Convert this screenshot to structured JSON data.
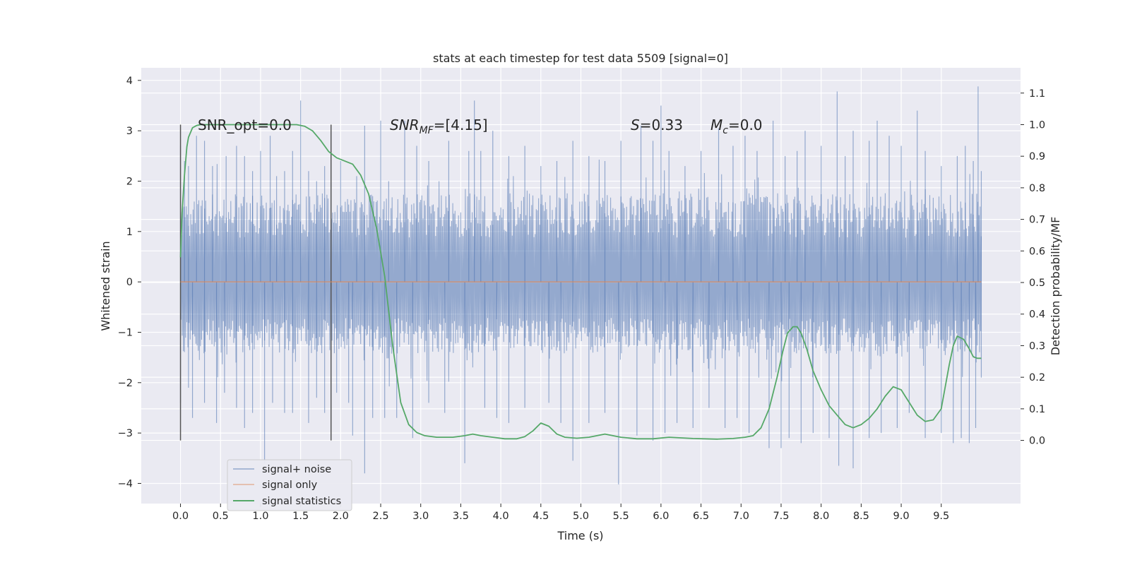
{
  "chart_data": {
    "type": "line",
    "title": "stats at each timestep for test data 5509 [signal=0]",
    "xlabel": "Time (s)",
    "ylabel": "Whitened strain",
    "y2label": "Detection probability/MF",
    "xlim": [
      -0.49,
      10.49
    ],
    "ylim": [
      -4.4,
      4.25
    ],
    "y2lim": [
      -0.2,
      1.18
    ],
    "x_ticks": [
      "0.0",
      "0.5",
      "1.0",
      "1.5",
      "2.0",
      "2.5",
      "3.0",
      "3.5",
      "4.0",
      "4.5",
      "5.0",
      "5.5",
      "6.0",
      "6.5",
      "7.0",
      "7.5",
      "8.0",
      "8.5",
      "9.0",
      "9.5"
    ],
    "y_ticks": [
      "4",
      "3",
      "2",
      "1",
      "0",
      "−1",
      "−2",
      "−3",
      "−4"
    ],
    "y2_ticks": [
      "1.1",
      "1.0",
      "0.9",
      "0.8",
      "0.7",
      "0.6",
      "0.5",
      "0.4",
      "0.3",
      "0.2",
      "0.1",
      "0.0"
    ],
    "grid": true,
    "annotations": {
      "snr_opt": "SNR_opt=0.0",
      "snr_mf_base": "SNR",
      "snr_mf_sub": "MF",
      "snr_mf_value": "=[4.15]",
      "s_sym": "S",
      "s_value": "=0.33",
      "mc_sym": "M",
      "mc_sub": "c",
      "mc_value": "=0.0"
    },
    "vertical_lines": [
      0.0,
      1.88
    ],
    "noise_envelope": {
      "x_start": 0.0,
      "x_end": 10.0,
      "typical_upper": 1.6,
      "typical_lower": -1.3,
      "max_peak": 3.88,
      "min_trough": -4.02
    },
    "series": [
      {
        "name": "signal+ noise",
        "color": "#4c72b0",
        "peaks": [
          {
            "x": 0.0,
            "y": 2.7
          },
          {
            "x": 0.05,
            "y": 2.4
          },
          {
            "x": 0.1,
            "y": 2.3
          },
          {
            "x": 0.2,
            "y": 2.9
          },
          {
            "x": 0.3,
            "y": 2.8
          },
          {
            "x": 0.4,
            "y": 2.3
          },
          {
            "x": 0.57,
            "y": 2.5
          },
          {
            "x": 0.7,
            "y": 2.7
          },
          {
            "x": 0.8,
            "y": 2.5
          },
          {
            "x": 0.9,
            "y": 2.2
          },
          {
            "x": 1.0,
            "y": 2.6
          },
          {
            "x": 1.12,
            "y": 2.9
          },
          {
            "x": 1.2,
            "y": 2.1
          },
          {
            "x": 1.3,
            "y": 2.2
          },
          {
            "x": 1.4,
            "y": 2.6
          },
          {
            "x": 1.5,
            "y": 3.6
          },
          {
            "x": 1.6,
            "y": 2.2
          },
          {
            "x": 1.7,
            "y": 2.0
          },
          {
            "x": 1.8,
            "y": 2.3
          },
          {
            "x": 2.0,
            "y": 2.4
          },
          {
            "x": 2.2,
            "y": 2.1
          },
          {
            "x": 2.3,
            "y": 3.1
          },
          {
            "x": 2.5,
            "y": 3.2
          },
          {
            "x": 2.6,
            "y": 2.0
          },
          {
            "x": 2.8,
            "y": 3.2
          },
          {
            "x": 2.95,
            "y": 2.7
          },
          {
            "x": 3.1,
            "y": 2.4
          },
          {
            "x": 3.35,
            "y": 2.8
          },
          {
            "x": 3.6,
            "y": 2.6
          },
          {
            "x": 3.67,
            "y": 3.6
          },
          {
            "x": 3.75,
            "y": 2.6
          },
          {
            "x": 3.9,
            "y": 3.0
          },
          {
            "x": 4.1,
            "y": 2.5
          },
          {
            "x": 4.3,
            "y": 2.7
          },
          {
            "x": 4.5,
            "y": 2.3
          },
          {
            "x": 4.7,
            "y": 2.4
          },
          {
            "x": 4.9,
            "y": 2.8
          },
          {
            "x": 5.1,
            "y": 2.5
          },
          {
            "x": 5.3,
            "y": 2.4
          },
          {
            "x": 5.5,
            "y": 2.8
          },
          {
            "x": 5.75,
            "y": 3.1
          },
          {
            "x": 5.9,
            "y": 2.8
          },
          {
            "x": 6.0,
            "y": 3.5
          },
          {
            "x": 6.1,
            "y": 2.6
          },
          {
            "x": 6.3,
            "y": 2.3
          },
          {
            "x": 6.5,
            "y": 2.6
          },
          {
            "x": 6.72,
            "y": 3.05
          },
          {
            "x": 6.9,
            "y": 2.7
          },
          {
            "x": 7.05,
            "y": 2.9
          },
          {
            "x": 7.2,
            "y": 2.6
          },
          {
            "x": 7.4,
            "y": 3.2
          },
          {
            "x": 7.55,
            "y": 2.5
          },
          {
            "x": 7.7,
            "y": 2.6
          },
          {
            "x": 7.8,
            "y": 3.0
          },
          {
            "x": 8.0,
            "y": 2.7
          },
          {
            "x": 8.2,
            "y": 3.78
          },
          {
            "x": 8.3,
            "y": 2.5
          },
          {
            "x": 8.4,
            "y": 3.0
          },
          {
            "x": 8.6,
            "y": 2.8
          },
          {
            "x": 8.7,
            "y": 3.2
          },
          {
            "x": 8.85,
            "y": 2.9
          },
          {
            "x": 9.0,
            "y": 2.7
          },
          {
            "x": 9.2,
            "y": 3.4
          },
          {
            "x": 9.3,
            "y": 2.6
          },
          {
            "x": 9.5,
            "y": 2.3
          },
          {
            "x": 9.7,
            "y": 2.5
          },
          {
            "x": 9.8,
            "y": 2.7
          },
          {
            "x": 9.9,
            "y": 2.4
          },
          {
            "x": 9.96,
            "y": 3.88
          },
          {
            "x": 10.0,
            "y": 2.2
          }
        ],
        "troughs": [
          {
            "x": 0.0,
            "y": -2.4
          },
          {
            "x": 0.1,
            "y": -2.1
          },
          {
            "x": 0.15,
            "y": -2.7
          },
          {
            "x": 0.3,
            "y": -2.4
          },
          {
            "x": 0.45,
            "y": -2.8
          },
          {
            "x": 0.55,
            "y": -2.2
          },
          {
            "x": 0.7,
            "y": -2.5
          },
          {
            "x": 0.8,
            "y": -2.9
          },
          {
            "x": 0.9,
            "y": -2.6
          },
          {
            "x": 1.05,
            "y": -3.6
          },
          {
            "x": 1.15,
            "y": -2.4
          },
          {
            "x": 1.3,
            "y": -2.6
          },
          {
            "x": 1.4,
            "y": -2.6
          },
          {
            "x": 1.6,
            "y": -2.8
          },
          {
            "x": 1.7,
            "y": -2.3
          },
          {
            "x": 1.8,
            "y": -2.6
          },
          {
            "x": 1.95,
            "y": -2.2
          },
          {
            "x": 2.1,
            "y": -2.4
          },
          {
            "x": 2.15,
            "y": -3.05
          },
          {
            "x": 2.3,
            "y": -3.8
          },
          {
            "x": 2.4,
            "y": -2.7
          },
          {
            "x": 2.55,
            "y": -2.7
          },
          {
            "x": 2.7,
            "y": -2.7
          },
          {
            "x": 2.9,
            "y": -3.1
          },
          {
            "x": 3.1,
            "y": -2.4
          },
          {
            "x": 3.3,
            "y": -2.6
          },
          {
            "x": 3.55,
            "y": -3.6
          },
          {
            "x": 3.8,
            "y": -2.5
          },
          {
            "x": 3.95,
            "y": -2.7
          },
          {
            "x": 4.1,
            "y": -2.8
          },
          {
            "x": 4.3,
            "y": -2.5
          },
          {
            "x": 4.6,
            "y": -2.4
          },
          {
            "x": 4.75,
            "y": -2.8
          },
          {
            "x": 4.9,
            "y": -3.55
          },
          {
            "x": 5.1,
            "y": -2.8
          },
          {
            "x": 5.3,
            "y": -2.6
          },
          {
            "x": 5.47,
            "y": -4.02
          },
          {
            "x": 5.7,
            "y": -3.05
          },
          {
            "x": 5.9,
            "y": -3.15
          },
          {
            "x": 6.05,
            "y": -3.0
          },
          {
            "x": 6.2,
            "y": -2.8
          },
          {
            "x": 6.4,
            "y": -2.9
          },
          {
            "x": 6.6,
            "y": -2.5
          },
          {
            "x": 6.8,
            "y": -2.9
          },
          {
            "x": 6.95,
            "y": -2.7
          },
          {
            "x": 7.1,
            "y": -3.0
          },
          {
            "x": 7.35,
            "y": -3.3
          },
          {
            "x": 7.5,
            "y": -3.3
          },
          {
            "x": 7.6,
            "y": -3.1
          },
          {
            "x": 7.75,
            "y": -3.2
          },
          {
            "x": 7.9,
            "y": -3.0
          },
          {
            "x": 8.1,
            "y": -3.1
          },
          {
            "x": 8.22,
            "y": -3.65
          },
          {
            "x": 8.4,
            "y": -3.7
          },
          {
            "x": 8.6,
            "y": -3.1
          },
          {
            "x": 8.75,
            "y": -3.0
          },
          {
            "x": 8.95,
            "y": -2.9
          },
          {
            "x": 9.1,
            "y": -2.6
          },
          {
            "x": 9.3,
            "y": -3.1
          },
          {
            "x": 9.5,
            "y": -3.0
          },
          {
            "x": 9.65,
            "y": -3.2
          },
          {
            "x": 9.75,
            "y": -3.1
          },
          {
            "x": 9.85,
            "y": -3.2
          },
          {
            "x": 9.93,
            "y": -2.9
          },
          {
            "x": 10.0,
            "y": -1.9
          }
        ]
      },
      {
        "name": "signal only",
        "color": "#dd8452",
        "x": [
          0.0,
          10.0
        ],
        "y": [
          0.0,
          0.0
        ]
      },
      {
        "name": "signal statistics",
        "color": "#55a868",
        "axis": "right",
        "x": [
          0.0,
          0.02,
          0.05,
          0.08,
          0.1,
          0.15,
          0.2,
          0.25,
          0.3,
          0.4,
          0.5,
          0.7,
          0.9,
          1.1,
          1.3,
          1.45,
          1.55,
          1.65,
          1.75,
          1.85,
          1.95,
          2.05,
          2.15,
          2.25,
          2.35,
          2.45,
          2.55,
          2.65,
          2.75,
          2.85,
          2.95,
          3.05,
          3.2,
          3.4,
          3.55,
          3.65,
          3.75,
          3.9,
          4.05,
          4.2,
          4.3,
          4.4,
          4.5,
          4.6,
          4.7,
          4.8,
          4.95,
          5.1,
          5.3,
          5.5,
          5.7,
          5.9,
          6.1,
          6.4,
          6.7,
          6.9,
          7.05,
          7.15,
          7.25,
          7.35,
          7.45,
          7.52,
          7.58,
          7.65,
          7.7,
          7.75,
          7.82,
          7.9,
          8.0,
          8.1,
          8.2,
          8.3,
          8.4,
          8.5,
          8.6,
          8.7,
          8.8,
          8.9,
          9.0,
          9.05,
          9.1,
          9.2,
          9.3,
          9.4,
          9.5,
          9.55,
          9.6,
          9.65,
          9.7,
          9.78,
          9.85,
          9.9,
          9.95,
          10.0
        ],
        "y": [
          0.58,
          0.72,
          0.84,
          0.93,
          0.96,
          0.99,
          0.997,
          1.0,
          1.0,
          1.0,
          1.0,
          1.0,
          1.0,
          1.0,
          1.0,
          1.0,
          0.995,
          0.98,
          0.95,
          0.915,
          0.895,
          0.885,
          0.875,
          0.84,
          0.78,
          0.67,
          0.52,
          0.3,
          0.12,
          0.05,
          0.025,
          0.015,
          0.01,
          0.01,
          0.015,
          0.02,
          0.015,
          0.01,
          0.005,
          0.005,
          0.012,
          0.03,
          0.055,
          0.045,
          0.02,
          0.01,
          0.007,
          0.01,
          0.02,
          0.01,
          0.005,
          0.005,
          0.01,
          0.006,
          0.004,
          0.006,
          0.01,
          0.015,
          0.04,
          0.1,
          0.2,
          0.28,
          0.34,
          0.36,
          0.36,
          0.34,
          0.29,
          0.22,
          0.16,
          0.11,
          0.08,
          0.05,
          0.04,
          0.05,
          0.07,
          0.1,
          0.14,
          0.17,
          0.16,
          0.14,
          0.12,
          0.08,
          0.06,
          0.065,
          0.1,
          0.17,
          0.24,
          0.3,
          0.33,
          0.32,
          0.29,
          0.265,
          0.26,
          0.26
        ]
      }
    ],
    "legend": {
      "placement": "lower-left",
      "entries": [
        "signal+ noise",
        "signal only",
        "signal statistics"
      ]
    },
    "colors": {
      "background": "#eaeaf2",
      "grid": "#ffffff",
      "noise": "#4c72b0",
      "signal": "#dd8452",
      "stats": "#55a868",
      "marker_line": "#555555"
    }
  }
}
